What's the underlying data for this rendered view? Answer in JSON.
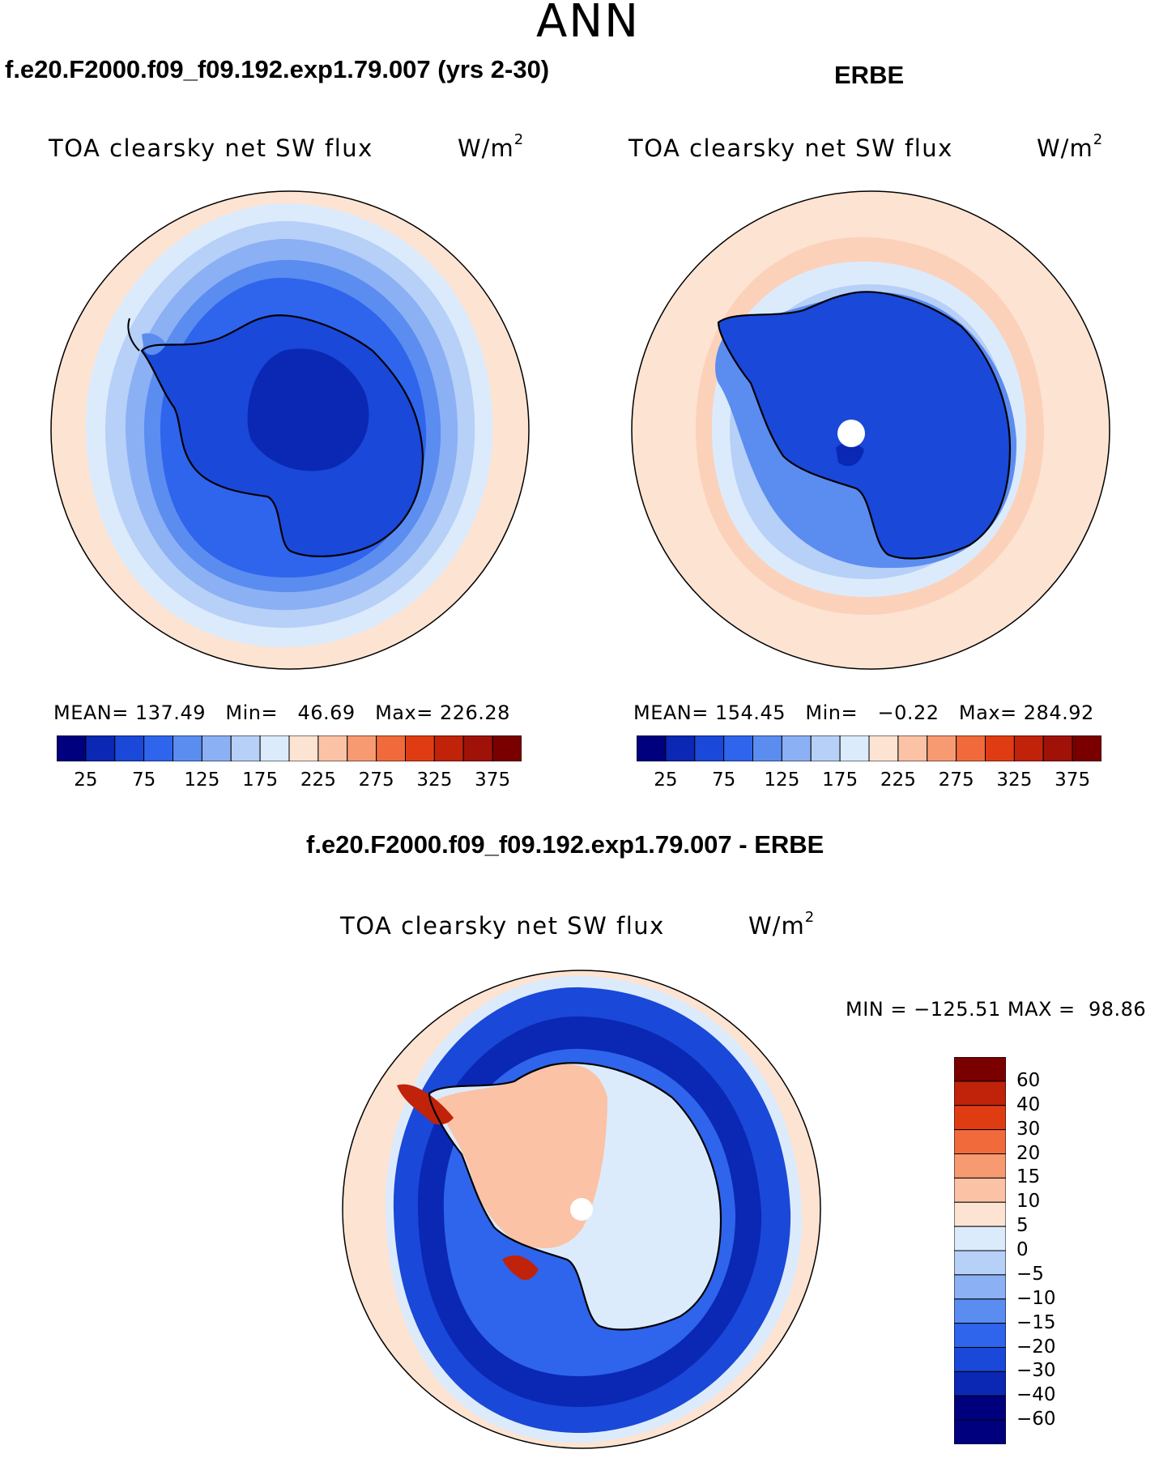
{
  "season": "ANN",
  "panels": [
    {
      "id": "model",
      "case_title": "f.e20.F2000.f09_f09.192.exp1.79.007 (yrs 2-30)",
      "var_title": "TOA clearsky net SW flux",
      "units_base": "W/m",
      "units_sup": "2",
      "mean_label": "MEAN=",
      "mean_value": "137.49",
      "min_label": "Min=",
      "min_value": "46.69",
      "max_label": "Max=",
      "max_value": "226.28"
    },
    {
      "id": "obs",
      "case_title": "ERBE",
      "var_title": "TOA clearsky net SW flux",
      "units_base": "W/m",
      "units_sup": "2",
      "mean_label": "MEAN=",
      "mean_value": "154.45",
      "min_label": "Min=",
      "min_value": "−0.22",
      "max_label": "Max=",
      "max_value": "284.92"
    }
  ],
  "diff_panel": {
    "case_title": "f.e20.F2000.f09_f09.192.exp1.79.007 - ERBE",
    "var_title": "TOA clearsky net SW flux",
    "units_base": "W/m",
    "units_sup": "2",
    "min_label": "MIN =",
    "min_value": "−125.51",
    "max_label": "MAX =",
    "max_value": "98.86"
  },
  "colors": {
    "abs_cbar": [
      "#00007f",
      "#0a28b4",
      "#1a48d8",
      "#2f64ec",
      "#5b8cf0",
      "#8bb0f4",
      "#b7d0f8",
      "#dcebfc",
      "#fde3d2",
      "#fbc2a6",
      "#f79a72",
      "#f06a3c",
      "#e03c14",
      "#c0220a",
      "#a01208",
      "#7a0000"
    ],
    "diff_cbar": [
      "#00007f",
      "#0a28b4",
      "#1a48d8",
      "#2f64ec",
      "#5b8cf0",
      "#8bb0f4",
      "#b7d0f8",
      "#dcebfc",
      "#fde3d2",
      "#fbc2a6",
      "#f79a72",
      "#f06a3c",
      "#e03c14",
      "#c0220a",
      "#7a0000"
    ]
  },
  "chart_data": [
    {
      "type": "polar-contour-map",
      "title": "TOA clearsky net SW flux",
      "subtitle": "f.e20.F2000.f09_f09.192.exp1.79.007 (yrs 2-30)",
      "units": "W/m2",
      "projection": "south polar stereographic",
      "contour_levels": [
        25,
        50,
        75,
        100,
        125,
        150,
        175,
        200,
        225,
        250,
        275,
        300,
        325,
        350,
        375
      ],
      "colorbar_tick_labels": [
        "25",
        "75",
        "125",
        "175",
        "225",
        "275",
        "325",
        "375"
      ],
      "mean": 137.49,
      "min": 46.69,
      "max": 226.28
    },
    {
      "type": "polar-contour-map",
      "title": "TOA clearsky net SW flux",
      "subtitle": "ERBE",
      "units": "W/m2",
      "projection": "south polar stereographic",
      "contour_levels": [
        25,
        50,
        75,
        100,
        125,
        150,
        175,
        200,
        225,
        250,
        275,
        300,
        325,
        350,
        375
      ],
      "colorbar_tick_labels": [
        "25",
        "75",
        "125",
        "175",
        "225",
        "275",
        "325",
        "375"
      ],
      "mean": 154.45,
      "min": -0.22,
      "max": 284.92
    },
    {
      "type": "polar-contour-map",
      "title": "TOA clearsky net SW flux",
      "subtitle": "f.e20.F2000.f09_f09.192.exp1.79.007 - ERBE",
      "units": "W/m2",
      "projection": "south polar stereographic",
      "contour_levels": [
        -60,
        -40,
        -30,
        -20,
        -15,
        -10,
        -5,
        0,
        5,
        10,
        15,
        20,
        30,
        40,
        60
      ],
      "colorbar_tick_labels": [
        "60",
        "40",
        "30",
        "20",
        "15",
        "10",
        "5",
        "0",
        "−5",
        "−10",
        "−15",
        "−20",
        "−30",
        "−40",
        "−60"
      ],
      "min": -125.51,
      "max": 98.86
    }
  ]
}
